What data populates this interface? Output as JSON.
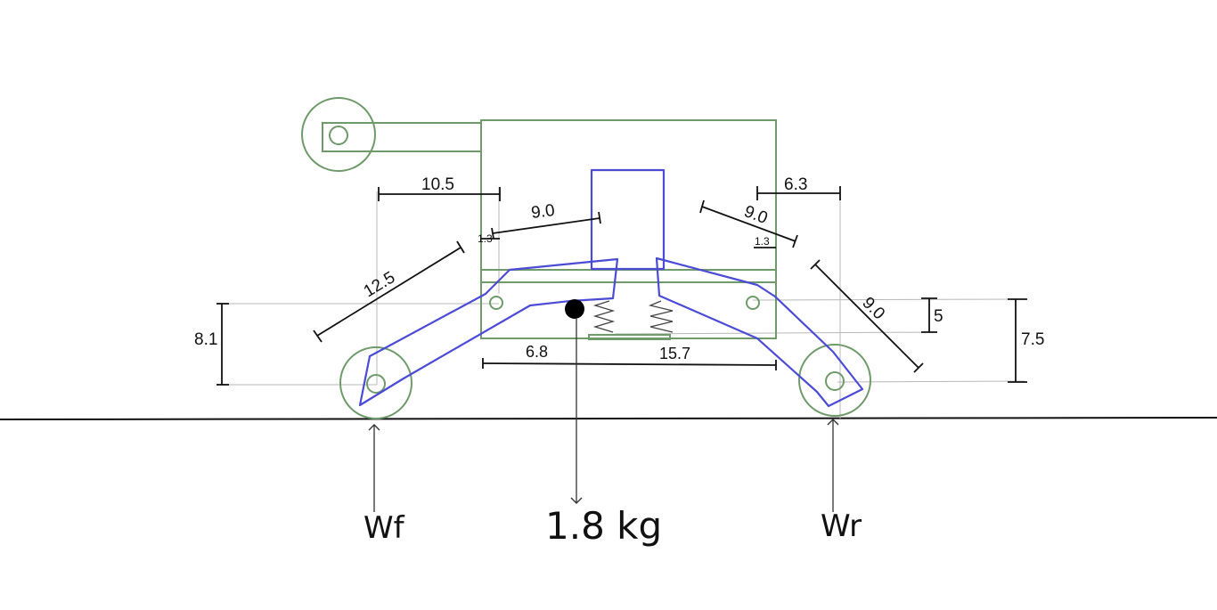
{
  "colors": {
    "frame": "#6f9a6a",
    "linkage": "#4b4bd6",
    "dimension": "#111111",
    "guide": "#b8b8b8",
    "ground": "#111111"
  },
  "dimensions": {
    "front_horizontal": "10.5",
    "front_link_upper": "9.0",
    "front_offset": "1.3",
    "front_link_lower": "12.5",
    "front_wheel_height": "8.1",
    "rear_horizontal": "6.3",
    "rear_link_upper": "9.0",
    "rear_offset": "1.3",
    "rear_link_lower": "9.0",
    "rear_pivot_height": "5",
    "rear_wheel_height": "7.5",
    "cg_from_front": "6.8",
    "cg_to_rear": "15.7"
  },
  "forces": {
    "front_reaction": "Wf",
    "weight": "1.8 kg",
    "rear_reaction": "Wr"
  }
}
